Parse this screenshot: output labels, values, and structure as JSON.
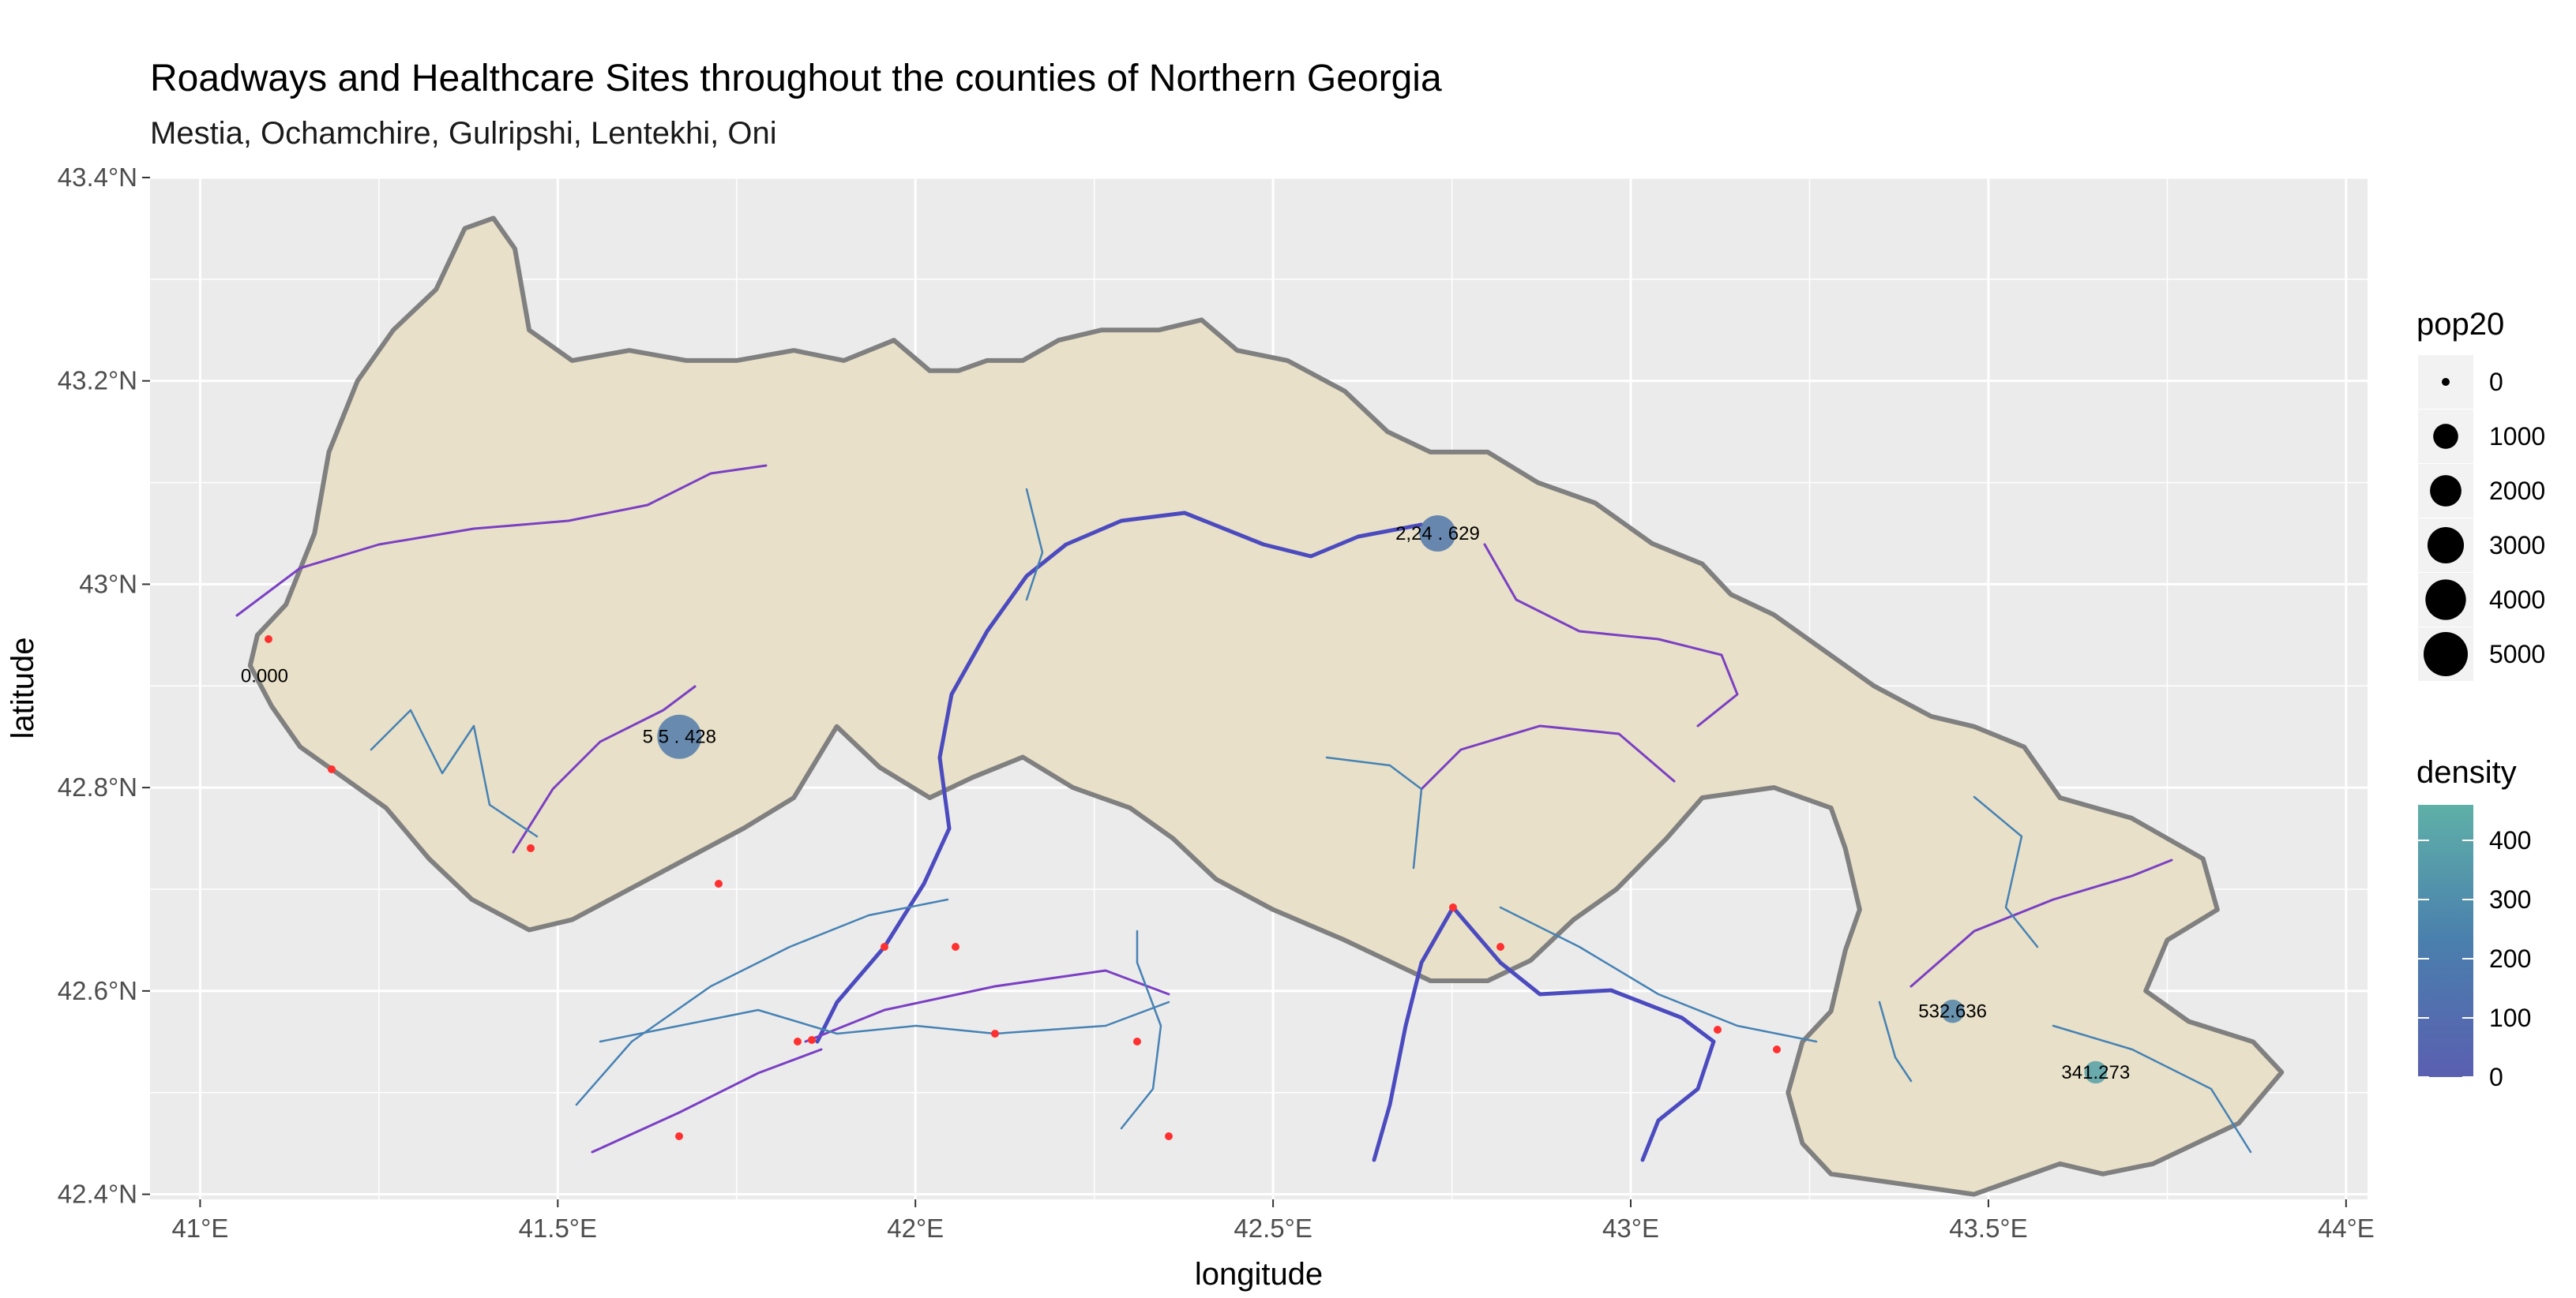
{
  "title": "Roadways and Healthcare Sites throughout the counties of Northern Georgia",
  "subtitle": "Mestia, Ochamchire, Gulripshi, Lentekhi, Oni",
  "colors": {
    "panel_bg": "#ebebeb",
    "grid": "#ffffff",
    "county_fill": "#e8e0c8",
    "county_border": "#808080",
    "road_minor": "#4682b4",
    "road_secondary": "#7b3fc4",
    "road_primary": "#4b4bbf",
    "healthcare_point": "#ff3030",
    "density_low": "#5a5fb0",
    "density_high": "#5fb0a8"
  },
  "chart_data": {
    "type": "map",
    "xlabel": "longitude",
    "ylabel": "latitude",
    "xlim": [
      40.93,
      44.03
    ],
    "ylim": [
      42.395,
      43.4
    ],
    "x_ticks": [
      41.0,
      41.5,
      42.0,
      42.5,
      43.0,
      43.5,
      44.0
    ],
    "x_tick_labels": [
      "41°E",
      "41.5°E",
      "42°E",
      "42.5°E",
      "43°E",
      "43.5°E",
      "44°E"
    ],
    "y_ticks": [
      42.4,
      42.6,
      42.8,
      43.0,
      43.2,
      43.4
    ],
    "y_tick_labels": [
      "42.4°N",
      "42.6°N",
      "42.8°N",
      "43°N",
      "43.2°N",
      "43.4°N"
    ],
    "grid": true,
    "counties_outline": [
      [
        41.08,
        42.95
      ],
      [
        41.12,
        42.98
      ],
      [
        41.16,
        43.05
      ],
      [
        41.18,
        43.13
      ],
      [
        41.22,
        43.2
      ],
      [
        41.27,
        43.25
      ],
      [
        41.33,
        43.29
      ],
      [
        41.37,
        43.35
      ],
      [
        41.41,
        43.36
      ],
      [
        41.44,
        43.33
      ],
      [
        41.46,
        43.25
      ],
      [
        41.52,
        43.22
      ],
      [
        41.6,
        43.23
      ],
      [
        41.68,
        43.22
      ],
      [
        41.75,
        43.22
      ],
      [
        41.83,
        43.23
      ],
      [
        41.9,
        43.22
      ],
      [
        41.97,
        43.24
      ],
      [
        42.02,
        43.21
      ],
      [
        42.06,
        43.21
      ],
      [
        42.1,
        43.22
      ],
      [
        42.15,
        43.22
      ],
      [
        42.2,
        43.24
      ],
      [
        42.26,
        43.25
      ],
      [
        42.34,
        43.25
      ],
      [
        42.4,
        43.26
      ],
      [
        42.45,
        43.23
      ],
      [
        42.52,
        43.22
      ],
      [
        42.6,
        43.19
      ],
      [
        42.66,
        43.15
      ],
      [
        42.72,
        43.13
      ],
      [
        42.8,
        43.13
      ],
      [
        42.87,
        43.1
      ],
      [
        42.95,
        43.08
      ],
      [
        43.03,
        43.04
      ],
      [
        43.1,
        43.02
      ],
      [
        43.14,
        42.99
      ],
      [
        43.2,
        42.97
      ],
      [
        43.28,
        42.93
      ],
      [
        43.34,
        42.9
      ],
      [
        43.42,
        42.87
      ],
      [
        43.48,
        42.86
      ],
      [
        43.55,
        42.84
      ],
      [
        43.6,
        42.79
      ],
      [
        43.7,
        42.77
      ],
      [
        43.8,
        42.73
      ],
      [
        43.82,
        42.68
      ],
      [
        43.75,
        42.65
      ],
      [
        43.72,
        42.6
      ],
      [
        43.78,
        42.57
      ],
      [
        43.87,
        42.55
      ],
      [
        43.91,
        42.52
      ],
      [
        43.85,
        42.47
      ],
      [
        43.73,
        42.43
      ],
      [
        43.66,
        42.42
      ],
      [
        43.6,
        42.43
      ],
      [
        43.48,
        42.4
      ],
      [
        43.38,
        42.41
      ],
      [
        43.28,
        42.42
      ],
      [
        43.24,
        42.45
      ],
      [
        43.22,
        42.5
      ],
      [
        43.24,
        42.55
      ],
      [
        43.28,
        42.58
      ],
      [
        43.3,
        42.64
      ],
      [
        43.32,
        42.68
      ],
      [
        43.3,
        42.74
      ],
      [
        43.28,
        42.78
      ],
      [
        43.2,
        42.8
      ],
      [
        43.1,
        42.79
      ],
      [
        43.05,
        42.75
      ],
      [
        42.98,
        42.7
      ],
      [
        42.92,
        42.67
      ],
      [
        42.86,
        42.63
      ],
      [
        42.8,
        42.61
      ],
      [
        42.72,
        42.61
      ],
      [
        42.66,
        42.63
      ],
      [
        42.6,
        42.65
      ],
      [
        42.5,
        42.68
      ],
      [
        42.42,
        42.71
      ],
      [
        42.36,
        42.75
      ],
      [
        42.3,
        42.78
      ],
      [
        42.22,
        42.8
      ],
      [
        42.15,
        42.83
      ],
      [
        42.08,
        42.81
      ],
      [
        42.02,
        42.79
      ],
      [
        41.95,
        42.82
      ],
      [
        41.89,
        42.86
      ],
      [
        41.83,
        42.79
      ],
      [
        41.76,
        42.76
      ],
      [
        41.68,
        42.73
      ],
      [
        41.6,
        42.7
      ],
      [
        41.52,
        42.67
      ],
      [
        41.46,
        42.66
      ],
      [
        41.38,
        42.69
      ],
      [
        41.32,
        42.73
      ],
      [
        41.26,
        42.78
      ],
      [
        41.2,
        42.81
      ],
      [
        41.14,
        42.84
      ],
      [
        41.1,
        42.88
      ],
      [
        41.07,
        42.92
      ]
    ],
    "healthcare_sites_pop20": [
      {
        "label": "0.000",
        "x": 41.09,
        "y": 42.91,
        "pop20": 0,
        "density": 0
      },
      {
        "label": "5 5 . 428",
        "x": 41.67,
        "y": 42.85,
        "pop20": 5000,
        "density": 200
      },
      {
        "label": "2,24 . 629",
        "x": 42.73,
        "y": 43.05,
        "pop20": 3000,
        "density": 180
      },
      {
        "label": "532.636",
        "x": 43.45,
        "y": 42.58,
        "pop20": 800,
        "density": 250
      },
      {
        "label": "341.273",
        "x": 43.65,
        "y": 42.52,
        "pop20": 700,
        "density": 400
      }
    ],
    "legend": {
      "size_title": "pop20",
      "size_labels": [
        "0",
        "1000",
        "2000",
        "3000",
        "4000",
        "5000"
      ],
      "size_values": [
        0,
        1000,
        2000,
        3000,
        4000,
        5000
      ],
      "color_title": "density",
      "color_labels": [
        "400",
        "300",
        "200",
        "100",
        "0"
      ],
      "color_values": [
        400,
        300,
        200,
        100,
        0
      ],
      "color_range": [
        0,
        460
      ]
    }
  }
}
